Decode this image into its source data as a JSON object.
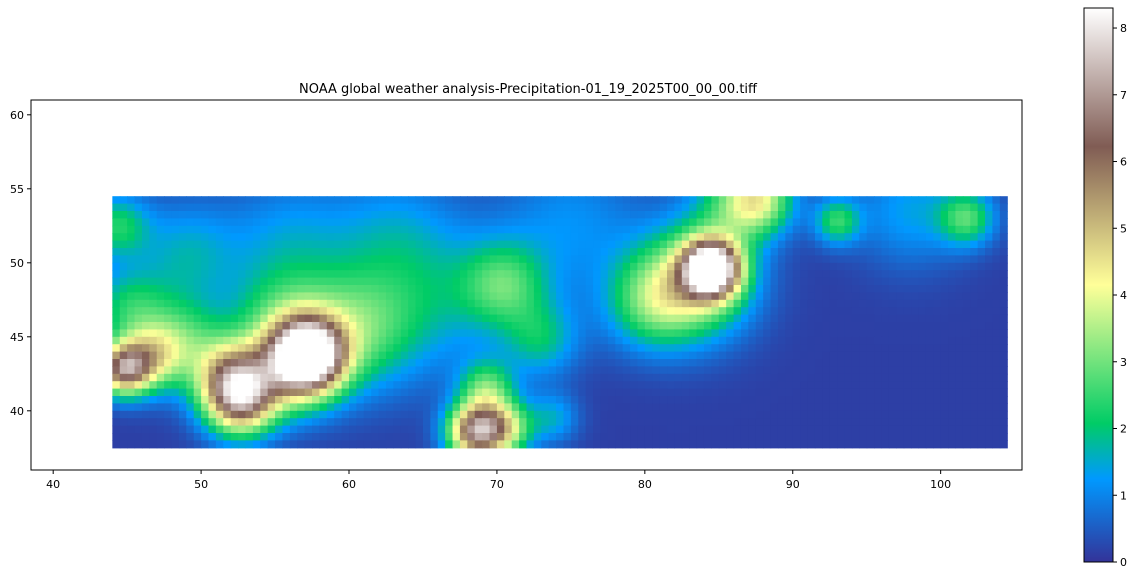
{
  "title": "NOAA global weather analysis-Precipitation-01_19_2025T00_00_00.tiff",
  "chart_data": {
    "type": "heatmap",
    "title": "NOAA global weather analysis-Precipitation-01_19_2025T00_00_00.tiff",
    "xlabel": "",
    "ylabel": "",
    "xlim": [
      38.5,
      105.5
    ],
    "ylim": [
      36,
      61
    ],
    "x_ticks": [
      40,
      50,
      60,
      70,
      80,
      90,
      100
    ],
    "y_ticks": [
      40,
      45,
      50,
      55,
      60
    ],
    "data_extent": {
      "lon_min": 44,
      "lon_max": 104.5,
      "lat_min": 37.3,
      "lat_max": 54.5
    },
    "background_value": 0.15,
    "blobs": [
      {
        "lon": 84.5,
        "lat": 49.6,
        "value": 8.3,
        "radius": 1.3
      },
      {
        "lon": 83.5,
        "lat": 48.8,
        "value": 3.5,
        "radius": 2.6
      },
      {
        "lon": 80.5,
        "lat": 47.3,
        "value": 2.2,
        "radius": 2.2
      },
      {
        "lon": 87.8,
        "lat": 54.3,
        "value": 3.0,
        "radius": 1.6
      },
      {
        "lon": 86.0,
        "lat": 54.0,
        "value": 1.8,
        "radius": 2.0
      },
      {
        "lon": 93.0,
        "lat": 52.8,
        "value": 2.2,
        "radius": 1.1
      },
      {
        "lon": 101.8,
        "lat": 53.0,
        "value": 2.3,
        "radius": 1.3
      },
      {
        "lon": 98.0,
        "lat": 53.5,
        "value": 1.2,
        "radius": 2.6
      },
      {
        "lon": 57.3,
        "lat": 43.8,
        "value": 6.5,
        "radius": 1.6
      },
      {
        "lon": 56.5,
        "lat": 43.0,
        "value": 4.0,
        "radius": 2.0
      },
      {
        "lon": 52.7,
        "lat": 40.8,
        "value": 5.8,
        "radius": 1.7
      },
      {
        "lon": 52.0,
        "lat": 42.5,
        "value": 3.4,
        "radius": 1.8
      },
      {
        "lon": 44.7,
        "lat": 42.8,
        "value": 5.5,
        "radius": 1.2
      },
      {
        "lon": 46.5,
        "lat": 43.5,
        "value": 3.0,
        "radius": 1.5
      },
      {
        "lon": 48.5,
        "lat": 44.8,
        "value": 2.2,
        "radius": 2.0
      },
      {
        "lon": 68.5,
        "lat": 38.6,
        "value": 6.0,
        "radius": 1.3
      },
      {
        "lon": 70.5,
        "lat": 38.8,
        "value": 3.5,
        "radius": 1.3
      },
      {
        "lon": 69.3,
        "lat": 41.5,
        "value": 2.5,
        "radius": 1.3
      },
      {
        "lon": 73.8,
        "lat": 39.5,
        "value": 1.3,
        "radius": 1.2
      },
      {
        "lon": 60.5,
        "lat": 45.5,
        "value": 2.4,
        "radius": 2.8
      },
      {
        "lon": 55.5,
        "lat": 46.0,
        "value": 2.0,
        "radius": 2.5
      },
      {
        "lon": 70.5,
        "lat": 48.5,
        "value": 2.1,
        "radius": 2.0
      },
      {
        "lon": 73.0,
        "lat": 44.8,
        "value": 1.6,
        "radius": 1.8
      },
      {
        "lon": 66.0,
        "lat": 47.5,
        "value": 1.2,
        "radius": 3.5
      },
      {
        "lon": 44.3,
        "lat": 52.5,
        "value": 2.0,
        "radius": 1.5
      },
      {
        "lon": 45.0,
        "lat": 47.0,
        "value": 1.8,
        "radius": 1.8
      },
      {
        "lon": 49.0,
        "lat": 50.5,
        "value": 1.4,
        "radius": 2.5
      },
      {
        "lon": 56.0,
        "lat": 51.5,
        "value": 1.1,
        "radius": 3.0
      },
      {
        "lon": 63.0,
        "lat": 52.0,
        "value": 1.0,
        "radius": 3.0
      },
      {
        "lon": 75.0,
        "lat": 52.5,
        "value": 1.0,
        "radius": 3.5
      }
    ]
  },
  "colorbar": {
    "colormap": "terrain",
    "min": 0,
    "max": 8.3,
    "ticks": [
      0,
      1,
      2,
      3,
      4,
      5,
      6,
      7,
      8
    ]
  }
}
